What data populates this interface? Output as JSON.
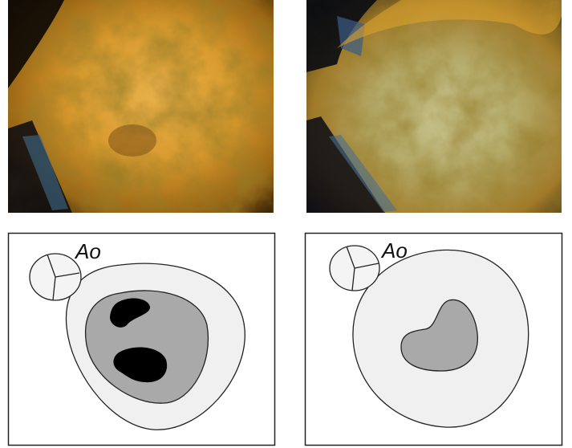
{
  "panels": [
    {
      "label": "Ao"
    },
    {
      "label": "Ao"
    }
  ]
}
